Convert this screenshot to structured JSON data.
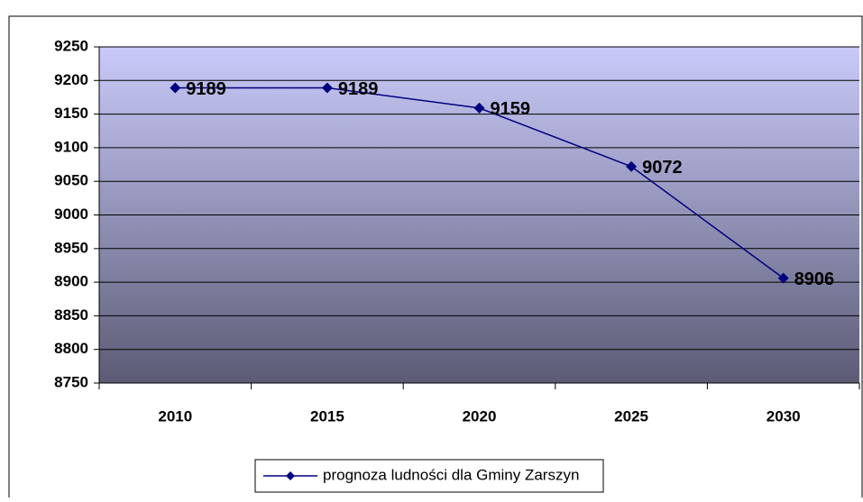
{
  "chart_data": {
    "type": "line",
    "categories": [
      "2010",
      "2015",
      "2020",
      "2025",
      "2030"
    ],
    "series": [
      {
        "name": "prognoza ludności dla Gminy Zarszyn",
        "color": "#000080",
        "values": [
          9189,
          9189,
          9159,
          9072,
          8906
        ]
      }
    ],
    "ylim": [
      8750,
      9250
    ],
    "yticks": [
      8750,
      8800,
      8850,
      8900,
      8950,
      9000,
      9050,
      9100,
      9150,
      9200,
      9250
    ],
    "grid": true,
    "legend": "bottom"
  }
}
